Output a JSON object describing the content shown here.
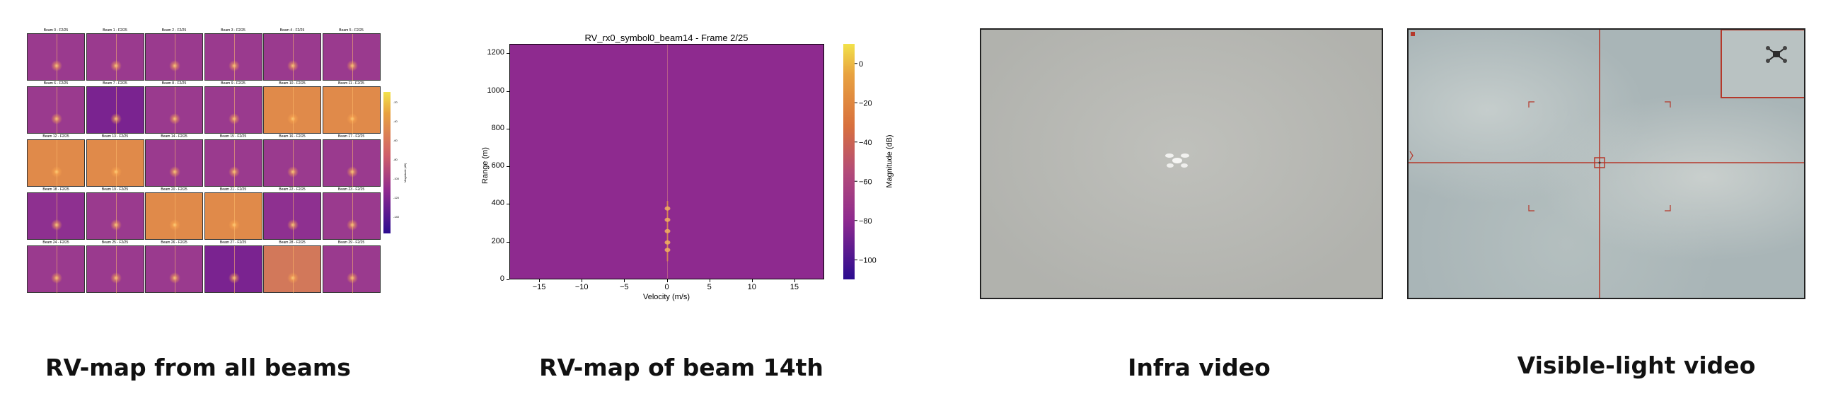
{
  "captions": {
    "all_beams": "RV-map from all beams",
    "beam14": "RV-map of beam 14th",
    "infra": "Infra video",
    "visible": "Visible-light video"
  },
  "all_beams_panel": {
    "cell_titles": [
      "Beam 0 - F2/25",
      "Beam 1 - F2/25",
      "Beam 2 - F2/25",
      "Beam 3 - F2/25",
      "Beam 4 - F2/25",
      "Beam 5 - F2/25",
      "Beam 6 - F2/25",
      "Beam 7 - F2/25",
      "Beam 8 - F2/25",
      "Beam 9 - F2/25",
      "Beam 10 - F2/25",
      "Beam 11 - F2/25",
      "Beam 12 - F2/25",
      "Beam 13 - F2/25",
      "Beam 14 - F2/25",
      "Beam 15 - F2/25",
      "Beam 16 - F2/25",
      "Beam 17 - F2/25",
      "Beam 18 - F2/25",
      "Beam 19 - F2/25",
      "Beam 20 - F2/25",
      "Beam 21 - F2/25",
      "Beam 22 - F2/25",
      "Beam 23 - F2/25",
      "Beam 24 - F2/25",
      "Beam 25 - F2/25",
      "Beam 26 - F2/25",
      "Beam 27 - F2/25",
      "Beam 28 - F2/25",
      "Beam 29 - F2/25"
    ],
    "cell_colors": [
      "#9a3a8e",
      "#9a3a8e",
      "#9a3a8e",
      "#9a3a8e",
      "#9a3a8e",
      "#9a3a8e",
      "#9a3a8e",
      "#7a2390",
      "#9a3a8e",
      "#9a3a8e",
      "#e08a4a",
      "#e08a4a",
      "#e08a4a",
      "#e08a4a",
      "#9a3a8e",
      "#9a3a8e",
      "#9a3a8e",
      "#9a3a8e",
      "#8e3090",
      "#9a3a8e",
      "#e08a4a",
      "#e08a4a",
      "#8e3090",
      "#9a3a8e",
      "#9a3a8e",
      "#9a3a8e",
      "#9a3a8e",
      "#7a2390",
      "#d2785a",
      "#9a3a8e"
    ],
    "colorbar_ticks": [
      "-20",
      "-40",
      "-60",
      "-80",
      "-100",
      "-120",
      "-140"
    ],
    "colorbar_label": "Magnitude (dB)"
  },
  "beam14_panel": {
    "title": "RV_rx0_symbol0_beam14 - Frame 2/25",
    "xlabel": "Velocity (m/s)",
    "ylabel": "Range (m)",
    "colorbar_label": "Magnitude (dB)"
  },
  "chart_data": {
    "type": "heatmap",
    "title": "RV_rx0_symbol0_beam14 - Frame 2/25",
    "xlabel": "Velocity (m/s)",
    "ylabel": "Range (m)",
    "xlim": [
      -18.5,
      18.5
    ],
    "ylim": [
      0,
      1250
    ],
    "xticks": [
      -15,
      -10,
      -5,
      0,
      5,
      10,
      15
    ],
    "yticks": [
      0,
      200,
      400,
      600,
      800,
      1000,
      1200
    ],
    "colorbar": {
      "label": "Magnitude (dB)",
      "range": [
        -110,
        10
      ],
      "ticks": [
        0,
        -20,
        -40,
        -60,
        -80,
        -100
      ]
    },
    "highlights": [
      {
        "velocity": 0,
        "range": 380
      },
      {
        "velocity": 0,
        "range": 320
      },
      {
        "velocity": 0,
        "range": 260
      },
      {
        "velocity": 0,
        "range": 200
      },
      {
        "velocity": 0,
        "range": 160
      }
    ]
  },
  "colors": {
    "cmap_low": "#2b0c8f",
    "cmap_mid": "#9a3a8e",
    "cmap_high": "#f2e24a",
    "overlay_red": "#c0392b"
  }
}
